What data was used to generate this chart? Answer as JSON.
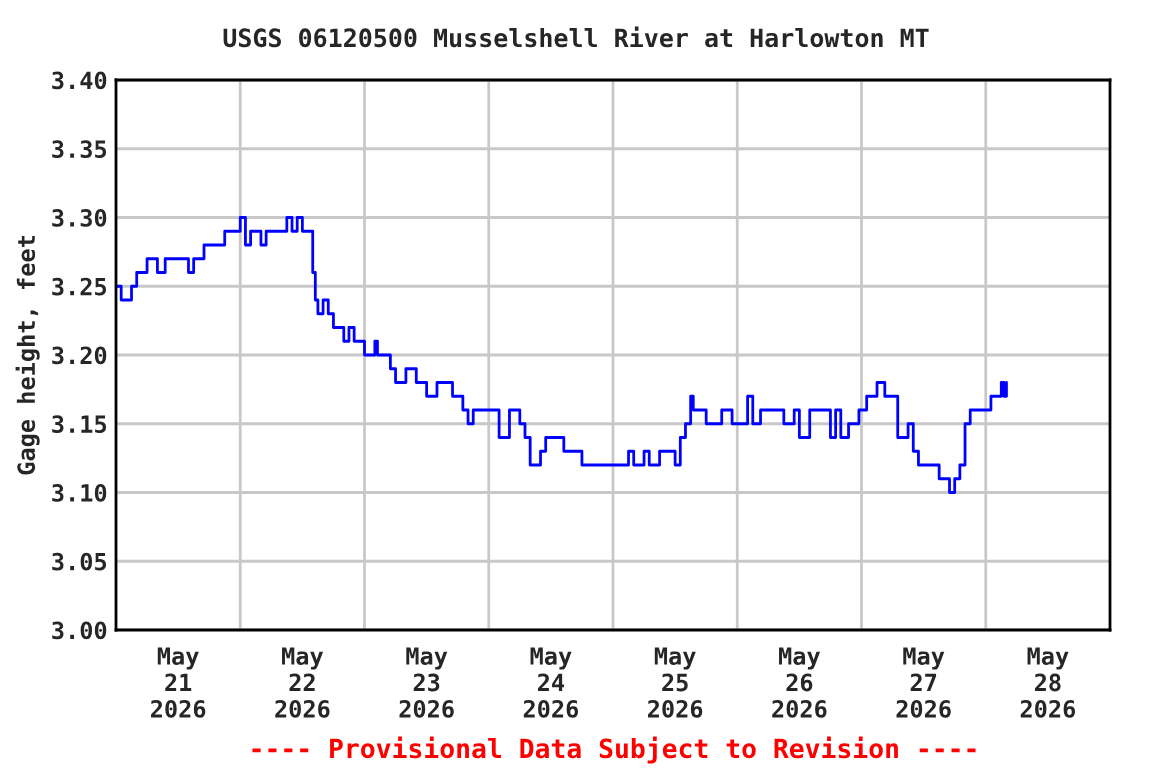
{
  "chart_data": {
    "type": "step",
    "title": "USGS 06120500 Musselshell River at Harlowton MT",
    "ylabel": "Gage height, feet",
    "annotations": [
      "---- Provisional Data Subject to Revision ----"
    ],
    "grid": true,
    "legend": false,
    "marker": "none",
    "line_style": "solid",
    "xlim": [
      "2026-05-21T00:00",
      "2026-05-29T00:00"
    ],
    "xticks": [
      {
        "value": "2026-05-21T12:00",
        "label": "May\n21\n2026"
      },
      {
        "value": "2026-05-22T00:00",
        "label": null
      },
      {
        "value": "2026-05-22T12:00",
        "label": "May\n22\n2026"
      },
      {
        "value": "2026-05-23T00:00",
        "label": null
      },
      {
        "value": "2026-05-23T12:00",
        "label": "May\n23\n2026"
      },
      {
        "value": "2026-05-24T00:00",
        "label": null
      },
      {
        "value": "2026-05-24T12:00",
        "label": "May\n24\n2026"
      },
      {
        "value": "2026-05-25T00:00",
        "label": null
      },
      {
        "value": "2026-05-25T12:00",
        "label": "May\n25\n2026"
      },
      {
        "value": "2026-05-26T00:00",
        "label": null
      },
      {
        "value": "2026-05-26T12:00",
        "label": "May\n26\n2026"
      },
      {
        "value": "2026-05-27T00:00",
        "label": null
      },
      {
        "value": "2026-05-27T12:00",
        "label": "May\n27\n2026"
      },
      {
        "value": "2026-05-28T00:00",
        "label": null
      },
      {
        "value": "2026-05-28T12:00",
        "label": "May\n28\n2026"
      }
    ],
    "ylim": [
      3.0,
      3.4
    ],
    "yticks": [
      {
        "value": 3.0,
        "label": "3.00"
      },
      {
        "value": 3.05,
        "label": "3.05"
      },
      {
        "value": 3.1,
        "label": "3.10"
      },
      {
        "value": 3.15,
        "label": "3.15"
      },
      {
        "value": 3.2,
        "label": "3.20"
      },
      {
        "value": 3.25,
        "label": "3.25"
      },
      {
        "value": 3.3,
        "label": "3.30"
      },
      {
        "value": 3.35,
        "label": "3.35"
      },
      {
        "value": 3.4,
        "label": "3.40"
      }
    ],
    "series": [
      {
        "color": "#0000ff",
        "x": [
          "2026-05-21T00:00",
          "2026-05-21T01:00",
          "2026-05-21T03:00",
          "2026-05-21T04:00",
          "2026-05-21T06:00",
          "2026-05-21T08:00",
          "2026-05-21T09:30",
          "2026-05-21T14:00",
          "2026-05-21T15:00",
          "2026-05-21T17:00",
          "2026-05-21T21:00",
          "2026-05-22T00:00",
          "2026-05-22T01:00",
          "2026-05-22T02:00",
          "2026-05-22T04:00",
          "2026-05-22T05:00",
          "2026-05-22T09:00",
          "2026-05-22T10:00",
          "2026-05-22T11:00",
          "2026-05-22T12:00",
          "2026-05-22T13:00",
          "2026-05-22T14:00",
          "2026-05-22T14:30",
          "2026-05-22T15:00",
          "2026-05-22T16:00",
          "2026-05-22T17:00",
          "2026-05-22T18:00",
          "2026-05-22T20:00",
          "2026-05-22T21:00",
          "2026-05-22T22:00",
          "2026-05-23T00:00",
          "2026-05-23T02:00",
          "2026-05-23T02:30",
          "2026-05-23T05:00",
          "2026-05-23T06:00",
          "2026-05-23T08:00",
          "2026-05-23T10:00",
          "2026-05-23T12:00",
          "2026-05-23T14:00",
          "2026-05-23T17:00",
          "2026-05-23T19:00",
          "2026-05-23T20:00",
          "2026-05-23T21:00",
          "2026-05-24T00:00",
          "2026-05-24T02:00",
          "2026-05-24T04:00",
          "2026-05-24T06:00",
          "2026-05-24T07:00",
          "2026-05-24T08:00",
          "2026-05-24T10:00",
          "2026-05-24T11:00",
          "2026-05-24T14:00",
          "2026-05-24T14:30",
          "2026-05-24T17:00",
          "2026-05-24T18:00",
          "2026-05-25T00:00",
          "2026-05-25T03:00",
          "2026-05-25T04:00",
          "2026-05-25T06:00",
          "2026-05-25T07:00",
          "2026-05-25T09:00",
          "2026-05-25T12:00",
          "2026-05-25T13:00",
          "2026-05-25T14:00",
          "2026-05-25T15:00",
          "2026-05-25T15:30",
          "2026-05-25T18:00",
          "2026-05-25T21:00",
          "2026-05-25T23:00",
          "2026-05-26T02:00",
          "2026-05-26T03:00",
          "2026-05-26T04:30",
          "2026-05-26T07:00",
          "2026-05-26T09:00",
          "2026-05-26T11:00",
          "2026-05-26T12:00",
          "2026-05-26T14:00",
          "2026-05-26T16:00",
          "2026-05-26T18:00",
          "2026-05-26T19:00",
          "2026-05-26T20:00",
          "2026-05-26T21:30",
          "2026-05-26T23:30",
          "2026-05-27T01:00",
          "2026-05-27T03:00",
          "2026-05-27T04:30",
          "2026-05-27T06:00",
          "2026-05-27T07:00",
          "2026-05-27T09:00",
          "2026-05-27T10:00",
          "2026-05-27T11:00",
          "2026-05-27T14:00",
          "2026-05-27T15:00",
          "2026-05-27T17:00",
          "2026-05-27T18:00",
          "2026-05-27T19:00",
          "2026-05-27T20:00",
          "2026-05-27T21:00",
          "2026-05-27T23:00",
          "2026-05-28T01:00",
          "2026-05-28T03:00",
          "2026-05-28T03:30",
          "2026-05-28T04:00"
        ],
        "values": [
          3.25,
          3.24,
          3.25,
          3.26,
          3.27,
          3.26,
          3.27,
          3.26,
          3.27,
          3.28,
          3.29,
          3.3,
          3.28,
          3.29,
          3.28,
          3.29,
          3.3,
          3.29,
          3.3,
          3.29,
          3.29,
          3.26,
          3.24,
          3.23,
          3.24,
          3.23,
          3.22,
          3.21,
          3.22,
          3.21,
          3.2,
          3.21,
          3.2,
          3.19,
          3.18,
          3.19,
          3.18,
          3.17,
          3.18,
          3.17,
          3.16,
          3.15,
          3.16,
          3.16,
          3.14,
          3.16,
          3.15,
          3.14,
          3.12,
          3.13,
          3.14,
          3.14,
          3.13,
          3.13,
          3.12,
          3.12,
          3.13,
          3.12,
          3.13,
          3.12,
          3.13,
          3.12,
          3.14,
          3.15,
          3.17,
          3.16,
          3.15,
          3.16,
          3.15,
          3.17,
          3.15,
          3.16,
          3.16,
          3.15,
          3.16,
          3.14,
          3.16,
          3.16,
          3.14,
          3.16,
          3.14,
          3.15,
          3.16,
          3.17,
          3.18,
          3.17,
          3.17,
          3.14,
          3.15,
          3.13,
          3.12,
          3.12,
          3.11,
          3.1,
          3.11,
          3.12,
          3.15,
          3.16,
          3.16,
          3.17,
          3.18,
          3.17,
          3.18
        ]
      }
    ]
  }
}
